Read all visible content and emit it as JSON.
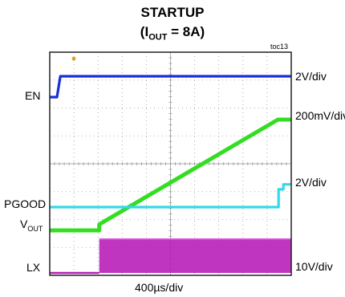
{
  "title": {
    "line1": "STARTUP",
    "line2_open": "(I",
    "line2_sub": "OUT",
    "line2_rest": " = 8A)"
  },
  "toc_id": "toc13",
  "xlabel": "400µs/div",
  "colors": {
    "EN": "#1a2fd6",
    "VOUT": "#33dd22",
    "PGOOD": "#33d9e8",
    "LX": "#b81fb8",
    "frame": "#222222",
    "grid": "#9a9a9a",
    "marker": "#e0a020"
  },
  "chart_data": {
    "type": "line",
    "x_unit": "µs",
    "x_per_div": 400,
    "x_divisions": 10,
    "y_divisions": 8,
    "grid": true,
    "series": [
      {
        "name": "EN",
        "label": "EN",
        "scale": "2V/div",
        "description_points": [
          [
            0,
            0
          ],
          [
            120,
            0
          ],
          [
            175,
            2.2
          ],
          [
            4000,
            2.2
          ]
        ]
      },
      {
        "name": "VOUT",
        "label_main": "V",
        "label_sub": "OUT",
        "scale": "200mV/div",
        "description_points": [
          [
            0,
            0
          ],
          [
            820,
            0
          ],
          [
            820,
            0.05
          ],
          [
            3780,
            0.92
          ],
          [
            4000,
            0.92
          ]
        ]
      },
      {
        "name": "PGOOD",
        "label": "PGOOD",
        "scale": "2V/div",
        "description_points": [
          [
            0,
            0
          ],
          [
            3790,
            0
          ],
          [
            3790,
            0.35
          ],
          [
            3870,
            0.35
          ],
          [
            3870,
            0.45
          ],
          [
            4000,
            0.45
          ]
        ]
      },
      {
        "name": "LX",
        "label": "LX",
        "scale": "10V/div",
        "description_points": [
          [
            0,
            0
          ],
          [
            820,
            0
          ],
          [
            820,
            6
          ],
          [
            4000,
            6
          ]
        ]
      }
    ]
  }
}
